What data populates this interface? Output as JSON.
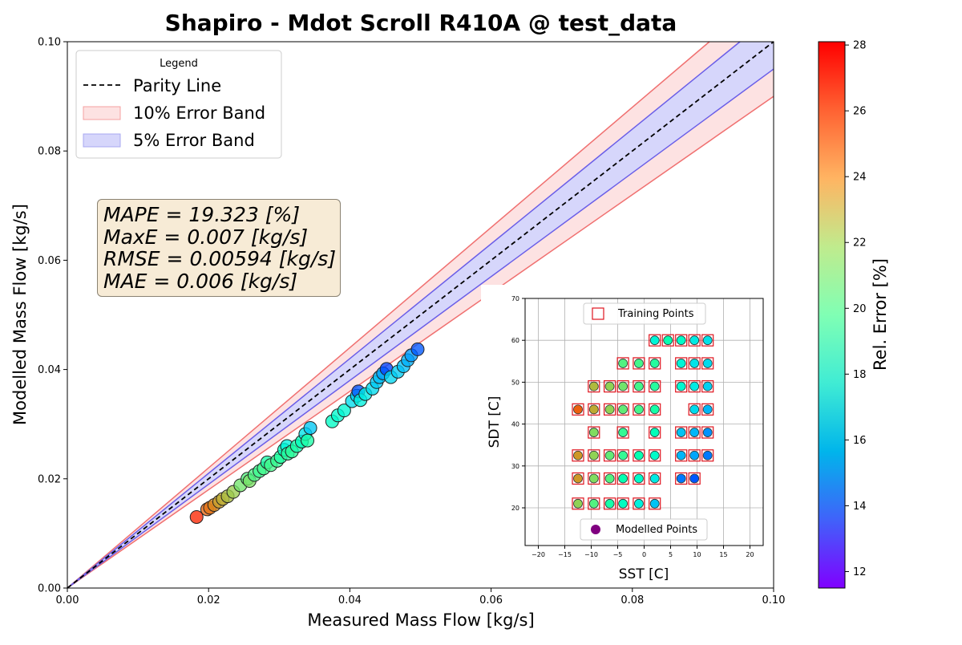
{
  "chart_data": {
    "type": "scatter",
    "title": "Shapiro - Mdot Scroll R410A @ test_data",
    "xlabel": "Measured Mass Flow [kg/s]",
    "ylabel": "Modelled Mass Flow [kg/s]",
    "xlim": [
      0,
      0.1
    ],
    "ylim": [
      0,
      0.1
    ],
    "xticks": [
      "0.00",
      "0.02",
      "0.04",
      "0.06",
      "0.08",
      "0.10"
    ],
    "yticks": [
      "0.00",
      "0.02",
      "0.04",
      "0.06",
      "0.08",
      "0.10"
    ],
    "legend": {
      "title": "Legend",
      "location": "upper-left",
      "entries": [
        "Parity Line",
        "10% Error Band",
        "5% Error Band"
      ]
    },
    "bands": [
      {
        "name": "10% Error Band",
        "fraction": 0.1,
        "fill": "#fde2e2",
        "edge": "#f07070"
      },
      {
        "name": "5% Error Band",
        "fraction": 0.05,
        "fill": "#d6d6fb",
        "edge": "#6a5ee8"
      }
    ],
    "metrics": [
      "MAPE = 19.323 [%]",
      "MaxE = 0.007 [kg/s]",
      "RMSE = 0.00594 [kg/s]",
      "MAE = 0.006 [kg/s]"
    ],
    "points": [
      {
        "x": 0.0183,
        "y": 0.013,
        "e": 28.0
      },
      {
        "x": 0.0198,
        "y": 0.0144,
        "e": 27.4
      },
      {
        "x": 0.0202,
        "y": 0.0147,
        "e": 27.2
      },
      {
        "x": 0.0208,
        "y": 0.0152,
        "e": 26.8
      },
      {
        "x": 0.0215,
        "y": 0.0158,
        "e": 26.3
      },
      {
        "x": 0.022,
        "y": 0.0163,
        "e": 25.9
      },
      {
        "x": 0.0227,
        "y": 0.0168,
        "e": 25.4
      },
      {
        "x": 0.0235,
        "y": 0.0176,
        "e": 24.8
      },
      {
        "x": 0.0245,
        "y": 0.0188,
        "e": 23.5
      },
      {
        "x": 0.0255,
        "y": 0.02,
        "e": 22.6
      },
      {
        "x": 0.0258,
        "y": 0.0196,
        "e": 23.8
      },
      {
        "x": 0.0265,
        "y": 0.0207,
        "e": 22.3
      },
      {
        "x": 0.0272,
        "y": 0.0214,
        "e": 21.8
      },
      {
        "x": 0.0278,
        "y": 0.0219,
        "e": 21.9
      },
      {
        "x": 0.0283,
        "y": 0.023,
        "e": 20.6
      },
      {
        "x": 0.0288,
        "y": 0.0225,
        "e": 22.0
      },
      {
        "x": 0.0297,
        "y": 0.0233,
        "e": 21.6
      },
      {
        "x": 0.0302,
        "y": 0.024,
        "e": 20.8
      },
      {
        "x": 0.0307,
        "y": 0.0253,
        "e": 19.4
      },
      {
        "x": 0.0311,
        "y": 0.026,
        "e": 17.2
      },
      {
        "x": 0.0312,
        "y": 0.0246,
        "e": 21.0
      },
      {
        "x": 0.0318,
        "y": 0.025,
        "e": 21.2
      },
      {
        "x": 0.0325,
        "y": 0.026,
        "e": 20.4
      },
      {
        "x": 0.0332,
        "y": 0.0268,
        "e": 19.5
      },
      {
        "x": 0.0337,
        "y": 0.0282,
        "e": 16.0
      },
      {
        "x": 0.034,
        "y": 0.027,
        "e": 20.6
      },
      {
        "x": 0.0344,
        "y": 0.0293,
        "e": 14.6
      },
      {
        "x": 0.0375,
        "y": 0.0305,
        "e": 18.8
      },
      {
        "x": 0.0383,
        "y": 0.0316,
        "e": 18.2
      },
      {
        "x": 0.0392,
        "y": 0.0325,
        "e": 17.8
      },
      {
        "x": 0.0403,
        "y": 0.0342,
        "e": 15.6
      },
      {
        "x": 0.041,
        "y": 0.0352,
        "e": 14.8
      },
      {
        "x": 0.0412,
        "y": 0.036,
        "e": 12.0
      },
      {
        "x": 0.0415,
        "y": 0.0344,
        "e": 17.0
      },
      {
        "x": 0.0422,
        "y": 0.0355,
        "e": 16.4
      },
      {
        "x": 0.0432,
        "y": 0.0365,
        "e": 15.5
      },
      {
        "x": 0.0438,
        "y": 0.0377,
        "e": 14.7
      },
      {
        "x": 0.0442,
        "y": 0.0386,
        "e": 14.2
      },
      {
        "x": 0.0447,
        "y": 0.0393,
        "e": 13.4
      },
      {
        "x": 0.0452,
        "y": 0.0401,
        "e": 11.8
      },
      {
        "x": 0.0458,
        "y": 0.0386,
        "e": 15.3
      },
      {
        "x": 0.0468,
        "y": 0.0396,
        "e": 14.8
      },
      {
        "x": 0.0476,
        "y": 0.0406,
        "e": 14.3
      },
      {
        "x": 0.0482,
        "y": 0.0417,
        "e": 13.8
      },
      {
        "x": 0.0487,
        "y": 0.0426,
        "e": 13.2
      },
      {
        "x": 0.0496,
        "y": 0.0437,
        "e": 12.0
      }
    ],
    "colorbar": {
      "label": "Rel. Error [%]",
      "min": 11.5,
      "max": 28.1,
      "ticks": [
        "12",
        "14",
        "16",
        "18",
        "20",
        "22",
        "24",
        "26",
        "28"
      ],
      "colormap": "rainbow"
    },
    "inset": {
      "type": "scatter",
      "xlabel": "SST [C]",
      "ylabel": "SDT [C]",
      "xlim": [
        -22.5,
        22.5
      ],
      "ylim": [
        11,
        70
      ],
      "xticks": [
        "−20",
        "−15",
        "−10",
        "−5",
        "0",
        "5",
        "10",
        "15",
        "20"
      ],
      "yticks": [
        "20",
        "30",
        "40",
        "50",
        "60",
        "70"
      ],
      "grid": true,
      "legend_training": "Training Points",
      "legend_modelled": "Modelled Points",
      "training_color": "#e0141e",
      "modelled_color": "#800080",
      "points": [
        {
          "x": 2,
          "y": 60,
          "e": 17.5
        },
        {
          "x": 4.5,
          "y": 60,
          "e": 20.0
        },
        {
          "x": 7,
          "y": 60,
          "e": 18.5
        },
        {
          "x": 9.5,
          "y": 60,
          "e": 16.5
        },
        {
          "x": 12,
          "y": 60,
          "e": 16.0
        },
        {
          "x": -4,
          "y": 54.5,
          "e": 22.5
        },
        {
          "x": -1,
          "y": 54.5,
          "e": 22.0
        },
        {
          "x": 2,
          "y": 54.5,
          "e": 21.0
        },
        {
          "x": 7,
          "y": 54.5,
          "e": 17.5
        },
        {
          "x": 9.5,
          "y": 54.5,
          "e": 16.0
        },
        {
          "x": 12,
          "y": 54.5,
          "e": 15.5
        },
        {
          "x": -9.5,
          "y": 49,
          "e": 25.5
        },
        {
          "x": -6.5,
          "y": 49,
          "e": 24.5
        },
        {
          "x": -4,
          "y": 49,
          "e": 23.5
        },
        {
          "x": -1,
          "y": 49,
          "e": 22.0
        },
        {
          "x": 2,
          "y": 49,
          "e": 21.0
        },
        {
          "x": 7,
          "y": 49,
          "e": 18.0
        },
        {
          "x": 9.5,
          "y": 49,
          "e": 16.5
        },
        {
          "x": 12,
          "y": 49,
          "e": 15.0
        },
        {
          "x": -12.5,
          "y": 43.5,
          "e": 27.5
        },
        {
          "x": -9.5,
          "y": 43.5,
          "e": 26.0
        },
        {
          "x": -6.5,
          "y": 43.5,
          "e": 24.5
        },
        {
          "x": -4,
          "y": 43.5,
          "e": 23.0
        },
        {
          "x": -1,
          "y": 43.5,
          "e": 22.0
        },
        {
          "x": 2,
          "y": 43.5,
          "e": 20.5
        },
        {
          "x": 9.5,
          "y": 43.5,
          "e": 15.5
        },
        {
          "x": 12,
          "y": 43.5,
          "e": 14.0
        },
        {
          "x": -9.5,
          "y": 38,
          "e": 24.0
        },
        {
          "x": -4,
          "y": 38,
          "e": 21.5
        },
        {
          "x": 2,
          "y": 38,
          "e": 19.5
        },
        {
          "x": 7,
          "y": 38,
          "e": 14.5
        },
        {
          "x": 9.5,
          "y": 38,
          "e": 14.0
        },
        {
          "x": 12,
          "y": 38,
          "e": 13.0
        },
        {
          "x": -12.5,
          "y": 32.5,
          "e": 26.5
        },
        {
          "x": -9.5,
          "y": 32.5,
          "e": 24.5
        },
        {
          "x": -6.5,
          "y": 32.5,
          "e": 23.0
        },
        {
          "x": -4,
          "y": 32.5,
          "e": 21.5
        },
        {
          "x": -1,
          "y": 32.5,
          "e": 20.0
        },
        {
          "x": 2,
          "y": 32.5,
          "e": 18.5
        },
        {
          "x": 7,
          "y": 32.5,
          "e": 14.0
        },
        {
          "x": 9.5,
          "y": 32.5,
          "e": 13.5
        },
        {
          "x": 12,
          "y": 32.5,
          "e": 12.5
        },
        {
          "x": -12.5,
          "y": 27,
          "e": 26.5
        },
        {
          "x": -9.5,
          "y": 27,
          "e": 24.0
        },
        {
          "x": -6.5,
          "y": 27,
          "e": 22.5
        },
        {
          "x": -4,
          "y": 27,
          "e": 20.0
        },
        {
          "x": -1,
          "y": 27,
          "e": 18.5
        },
        {
          "x": 2,
          "y": 27,
          "e": 16.5
        },
        {
          "x": 7,
          "y": 27,
          "e": 12.5
        },
        {
          "x": 9.5,
          "y": 27,
          "e": 12.0
        },
        {
          "x": -12.5,
          "y": 21,
          "e": 24.5
        },
        {
          "x": -9.5,
          "y": 21,
          "e": 22.5
        },
        {
          "x": -6.5,
          "y": 21,
          "e": 20.5
        },
        {
          "x": -4,
          "y": 21,
          "e": 19.0
        },
        {
          "x": -1,
          "y": 21,
          "e": 17.0
        },
        {
          "x": 2,
          "y": 21,
          "e": 14.5
        }
      ]
    }
  }
}
